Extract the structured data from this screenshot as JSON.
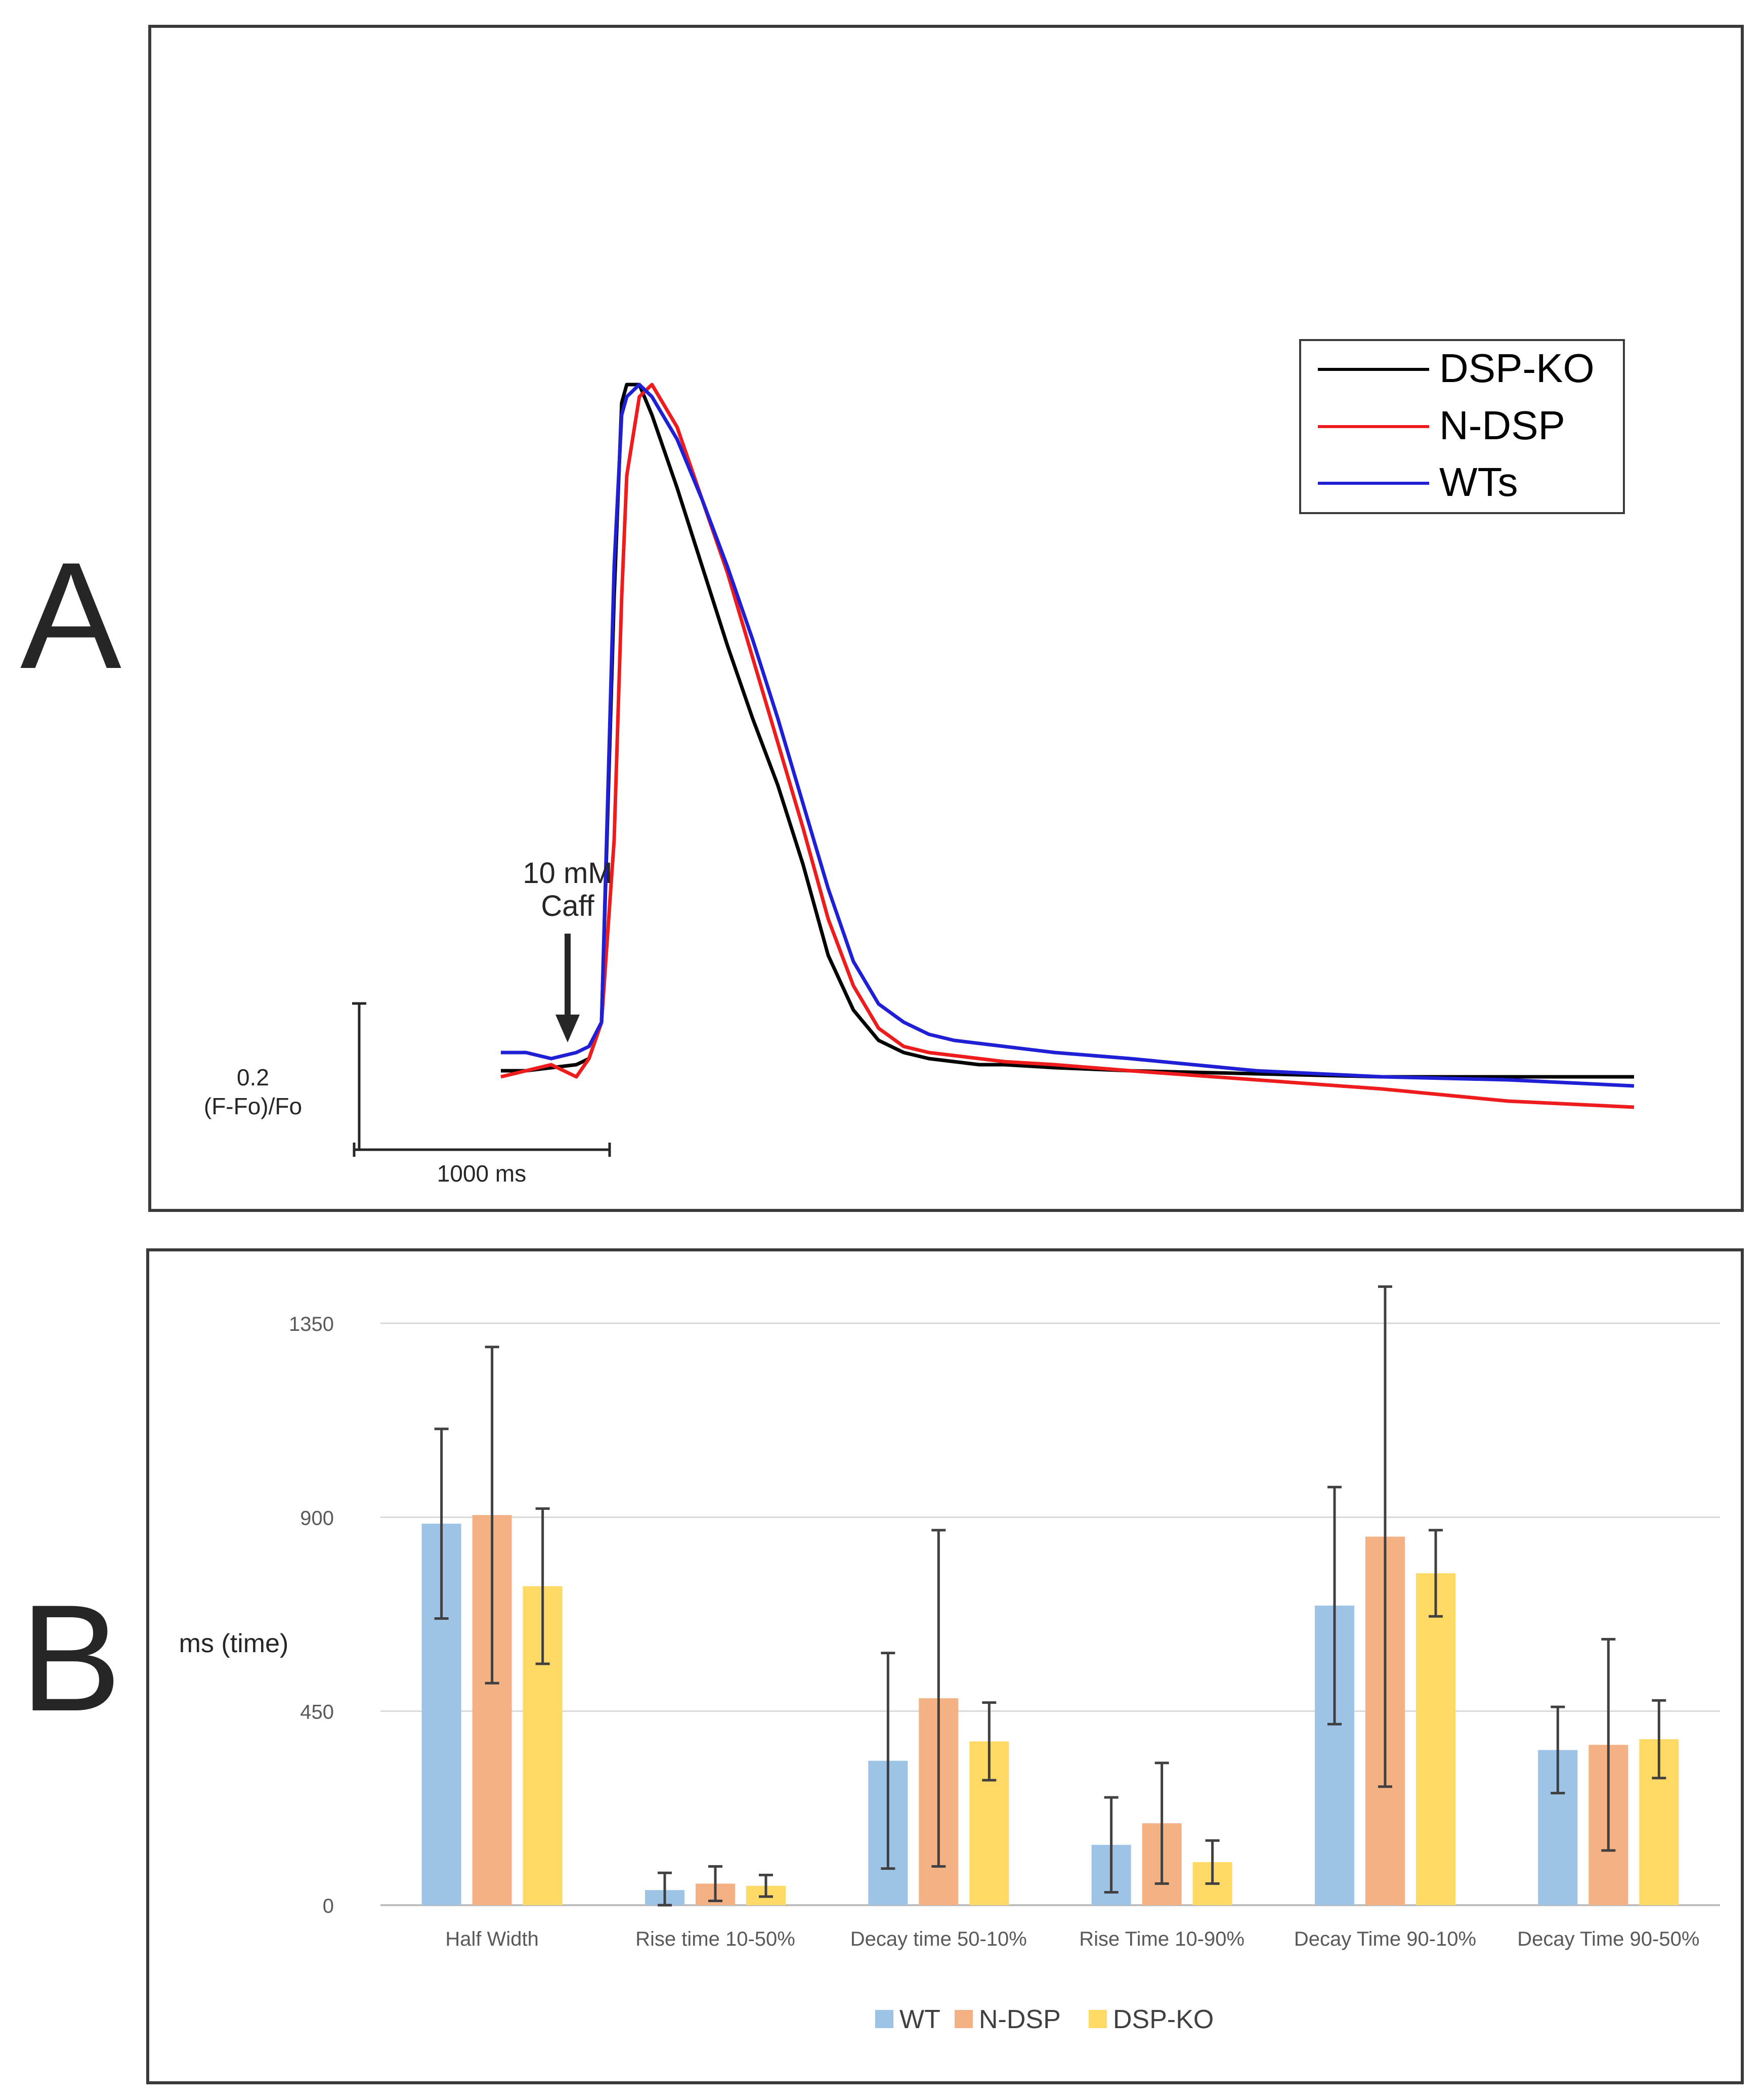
{
  "panel_a": {
    "letter": "A",
    "annotation_line1": "10 mM",
    "annotation_line2": "Caff",
    "scale_y_line1": "0.2",
    "scale_y_line2": "(F-Fo)/Fo",
    "scale_x_label": "1000 ms"
  },
  "panel_b": {
    "letter": "B"
  },
  "colors": {
    "dsp_ko_trace": "#000000",
    "n_dsp_trace": "#ee1c1c",
    "wts_trace": "#1f1fd6",
    "wt_bar": "#9dc3e6",
    "n_dsp_bar": "#f4b183",
    "dsp_ko_bar": "#ffd966",
    "error_bar": "#404040",
    "gridline": "#d9d9d9",
    "tick_label": "#595959"
  },
  "chart_data": [
    {
      "type": "line",
      "title": "",
      "xlabel": "",
      "ylabel": "",
      "x_unit": "ms",
      "y_unit": "(F-Fo)/Fo",
      "xlim": [
        0,
        4500
      ],
      "ylim": [
        0,
        1.2
      ],
      "grid": false,
      "legend_position": "top-right",
      "annotation": {
        "text": "10 mM Caff",
        "x": 250
      },
      "x": [
        0,
        100,
        200,
        300,
        350,
        400,
        450,
        480,
        500,
        550,
        600,
        700,
        800,
        900,
        1000,
        1100,
        1200,
        1300,
        1400,
        1500,
        1600,
        1700,
        1800,
        1900,
        2000,
        2200,
        2500,
        3000,
        3500,
        4000,
        4500
      ],
      "series": [
        {
          "name": "DSP-KO",
          "color_key": "dsp_ko_trace",
          "values": [
            0.02,
            0.02,
            0.025,
            0.03,
            0.04,
            0.1,
            0.8,
            1.12,
            1.15,
            1.15,
            1.1,
            0.98,
            0.85,
            0.72,
            0.6,
            0.49,
            0.36,
            0.21,
            0.12,
            0.07,
            0.05,
            0.04,
            0.035,
            0.03,
            0.03,
            0.025,
            0.02,
            0.015,
            0.01,
            0.01,
            0.01
          ]
        },
        {
          "name": "N-DSP",
          "color_key": "n_dsp_trace",
          "values": [
            0.01,
            0.02,
            0.03,
            0.01,
            0.04,
            0.1,
            0.4,
            0.8,
            1.0,
            1.13,
            1.15,
            1.08,
            0.96,
            0.84,
            0.7,
            0.56,
            0.42,
            0.27,
            0.16,
            0.09,
            0.06,
            0.05,
            0.045,
            0.04,
            0.035,
            0.03,
            0.02,
            0.005,
            -0.01,
            -0.03,
            -0.04
          ]
        },
        {
          "name": "WTs",
          "color_key": "wts_trace",
          "values": [
            0.05,
            0.05,
            0.04,
            0.05,
            0.06,
            0.1,
            0.85,
            1.1,
            1.13,
            1.15,
            1.13,
            1.06,
            0.96,
            0.85,
            0.73,
            0.6,
            0.46,
            0.32,
            0.2,
            0.13,
            0.1,
            0.08,
            0.07,
            0.065,
            0.06,
            0.05,
            0.04,
            0.02,
            0.01,
            0.005,
            -0.005
          ]
        }
      ],
      "scale_bar": {
        "x_value": 1000,
        "x_label": "1000 ms",
        "y_value": 0.2,
        "y_label": "(F-Fo)/Fo"
      }
    },
    {
      "type": "bar",
      "title": "",
      "xlabel": "",
      "ylabel": "ms (time)",
      "ylim": [
        0,
        1350
      ],
      "yticks": [
        0,
        450,
        900,
        1350
      ],
      "ytick_labels": [
        "0",
        "450",
        "900",
        "1350"
      ],
      "grid": true,
      "legend_position": "bottom",
      "categories": [
        "Half Width",
        "Rise time 10-50%",
        "Decay time 50-10%",
        "Rise Time 10-90%",
        "Decay Time 90-10%",
        "Decay Time 90-50%"
      ],
      "series": [
        {
          "name": "WT",
          "color_key": "wt_bar",
          "values": [
            885,
            35,
            335,
            140,
            695,
            360
          ],
          "errors": [
            220,
            40,
            250,
            110,
            275,
            100
          ]
        },
        {
          "name": "N-DSP",
          "color_key": "n_dsp_bar",
          "values": [
            905,
            50,
            480,
            190,
            855,
            372
          ],
          "errors": [
            390,
            40,
            390,
            140,
            580,
            245
          ]
        },
        {
          "name": "DSP-KO",
          "color_key": "dsp_ko_bar",
          "values": [
            740,
            45,
            380,
            100,
            770,
            385
          ],
          "errors": [
            180,
            25,
            90,
            50,
            100,
            90
          ]
        }
      ]
    }
  ]
}
